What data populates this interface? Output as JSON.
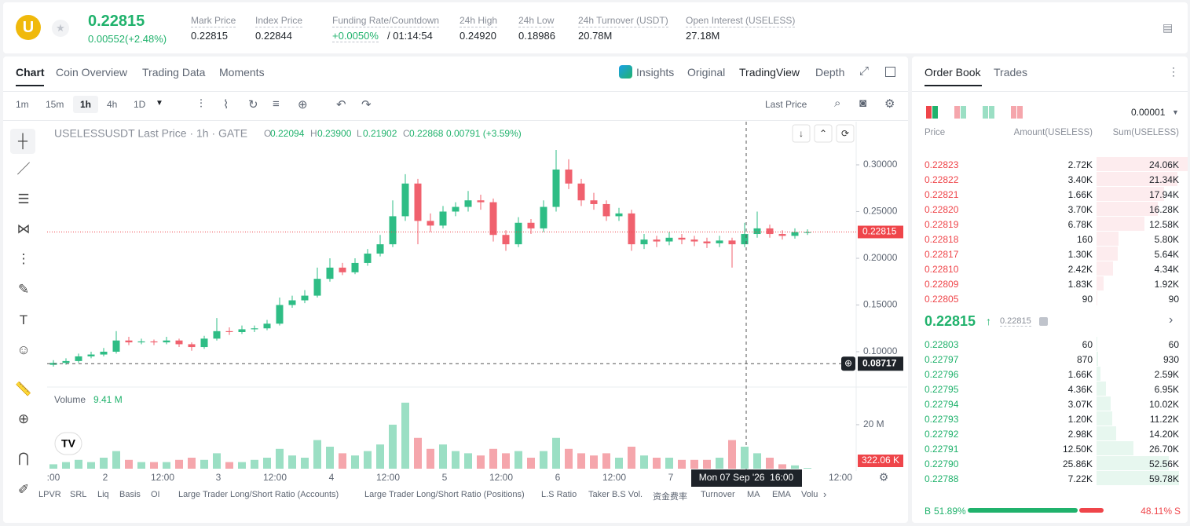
{
  "header": {
    "logo": "U",
    "price": "0.22815",
    "change": "0.00552(+2.48%)",
    "stats": [
      {
        "label": "Mark Price",
        "value": "0.22815"
      },
      {
        "label": "Index Price",
        "value": "0.22844"
      },
      {
        "label": "Funding Rate/Countdown",
        "value": "+0.0050%",
        "extra": "/ 01:14:54"
      },
      {
        "label": "24h High",
        "value": "0.24920"
      },
      {
        "label": "24h Low",
        "value": "0.18986"
      },
      {
        "label": "24h Turnover (USDT)",
        "value": "20.78M"
      },
      {
        "label": "Open Interest (USELESS)",
        "value": "27.18M"
      }
    ]
  },
  "tabs": {
    "left": [
      "Chart",
      "Coin Overview",
      "Trading Data",
      "Moments"
    ],
    "right": [
      "Insights",
      "Original",
      "TradingView",
      "Depth"
    ]
  },
  "toolbar": {
    "intervals": [
      "1m",
      "15m",
      "1h",
      "4h",
      "1D"
    ],
    "price_type": "Last Price"
  },
  "chart": {
    "legend": {
      "title": "USELESSUSDT Last Price · 1h · GATE",
      "ohlc": [
        [
          "O",
          "0.22094"
        ],
        [
          "H",
          "0.23900"
        ],
        [
          "L",
          "0.21902"
        ],
        [
          "C",
          "0.22868"
        ]
      ],
      "change": "0.00791 (+3.59%)"
    },
    "ylim": [
      0.0647,
      0.3462
    ],
    "yticks": [
      {
        "value": 0.3,
        "label": "0.30000"
      },
      {
        "value": 0.25,
        "label": "0.25000"
      },
      {
        "value": 0.2,
        "label": "0.20000"
      },
      {
        "value": 0.15,
        "label": "0.15000"
      },
      {
        "value": 0.1,
        "label": "0.10000"
      }
    ],
    "last_price": {
      "value": 0.22815,
      "label": "0.22815"
    },
    "crosshair": {
      "value": 0.08717,
      "label": "0.08717",
      "time": "Mon 07 Sep '26  16:00"
    },
    "candles": [
      [
        0.086,
        0.091,
        0.084,
        0.088
      ],
      [
        0.088,
        0.093,
        0.086,
        0.09
      ],
      [
        0.09,
        0.098,
        0.088,
        0.095
      ],
      [
        0.095,
        0.1,
        0.093,
        0.097
      ],
      [
        0.097,
        0.104,
        0.095,
        0.1
      ],
      [
        0.1,
        0.122,
        0.098,
        0.112
      ],
      [
        0.112,
        0.116,
        0.107,
        0.11
      ],
      [
        0.11,
        0.114,
        0.108,
        0.111
      ],
      [
        0.111,
        0.113,
        0.107,
        0.11
      ],
      [
        0.11,
        0.116,
        0.108,
        0.112
      ],
      [
        0.112,
        0.114,
        0.105,
        0.108
      ],
      [
        0.108,
        0.11,
        0.101,
        0.105
      ],
      [
        0.105,
        0.117,
        0.103,
        0.114
      ],
      [
        0.114,
        0.136,
        0.112,
        0.122
      ],
      [
        0.122,
        0.126,
        0.118,
        0.121
      ],
      [
        0.121,
        0.128,
        0.119,
        0.124
      ],
      [
        0.124,
        0.128,
        0.121,
        0.125
      ],
      [
        0.125,
        0.134,
        0.123,
        0.13
      ],
      [
        0.13,
        0.158,
        0.128,
        0.15
      ],
      [
        0.15,
        0.16,
        0.147,
        0.155
      ],
      [
        0.155,
        0.166,
        0.152,
        0.16
      ],
      [
        0.16,
        0.19,
        0.158,
        0.178
      ],
      [
        0.178,
        0.2,
        0.175,
        0.19
      ],
      [
        0.19,
        0.195,
        0.182,
        0.185
      ],
      [
        0.185,
        0.2,
        0.183,
        0.195
      ],
      [
        0.195,
        0.21,
        0.192,
        0.205
      ],
      [
        0.205,
        0.225,
        0.202,
        0.215
      ],
      [
        0.215,
        0.262,
        0.212,
        0.245
      ],
      [
        0.245,
        0.29,
        0.24,
        0.28
      ],
      [
        0.28,
        0.285,
        0.215,
        0.24
      ],
      [
        0.24,
        0.248,
        0.228,
        0.235
      ],
      [
        0.235,
        0.256,
        0.232,
        0.25
      ],
      [
        0.25,
        0.26,
        0.245,
        0.255
      ],
      [
        0.255,
        0.272,
        0.25,
        0.262
      ],
      [
        0.262,
        0.268,
        0.252,
        0.26
      ],
      [
        0.26,
        0.264,
        0.218,
        0.225
      ],
      [
        0.225,
        0.23,
        0.208,
        0.215
      ],
      [
        0.215,
        0.244,
        0.212,
        0.238
      ],
      [
        0.238,
        0.242,
        0.226,
        0.232
      ],
      [
        0.232,
        0.262,
        0.228,
        0.255
      ],
      [
        0.255,
        0.316,
        0.25,
        0.295
      ],
      [
        0.295,
        0.306,
        0.274,
        0.28
      ],
      [
        0.28,
        0.285,
        0.256,
        0.262
      ],
      [
        0.262,
        0.27,
        0.252,
        0.258
      ],
      [
        0.258,
        0.262,
        0.24,
        0.245
      ],
      [
        0.245,
        0.254,
        0.24,
        0.248
      ],
      [
        0.248,
        0.252,
        0.208,
        0.215
      ],
      [
        0.215,
        0.226,
        0.21,
        0.22
      ],
      [
        0.22,
        0.224,
        0.212,
        0.218
      ],
      [
        0.218,
        0.228,
        0.214,
        0.222
      ],
      [
        0.222,
        0.226,
        0.215,
        0.22
      ],
      [
        0.22,
        0.224,
        0.213,
        0.218
      ],
      [
        0.218,
        0.222,
        0.211,
        0.216
      ],
      [
        0.216,
        0.224,
        0.212,
        0.219
      ],
      [
        0.219,
        0.222,
        0.19,
        0.215
      ],
      [
        0.215,
        0.238,
        0.212,
        0.226
      ],
      [
        0.226,
        0.25,
        0.222,
        0.232
      ],
      [
        0.232,
        0.236,
        0.222,
        0.226
      ],
      [
        0.226,
        0.23,
        0.22,
        0.224
      ],
      [
        0.224,
        0.232,
        0.221,
        0.228
      ],
      [
        0.228,
        0.231,
        0.225,
        0.228
      ]
    ],
    "volume": {
      "title": "Volume",
      "value": "9.41 M",
      "ylim": [
        0,
        34.6
      ],
      "yticks": [
        {
          "value": 20,
          "label": "20 M"
        }
      ],
      "last": "322.06 K",
      "values": [
        2,
        3,
        4,
        3,
        5,
        8,
        4,
        3,
        3,
        3,
        4,
        5,
        4,
        7,
        3,
        3,
        4,
        5,
        9,
        6,
        5,
        13,
        10,
        7,
        6,
        8,
        11,
        20,
        30,
        14,
        9,
        11,
        8,
        7,
        6,
        9,
        7,
        8,
        5,
        8,
        14,
        9,
        7,
        6,
        7,
        5,
        10,
        6,
        5,
        5,
        4,
        4,
        4,
        5,
        13,
        10,
        7,
        5,
        2,
        1.5,
        0.32
      ]
    },
    "xticks": [
      ":00",
      "2",
      "12:00",
      "3",
      "12:00",
      "4",
      "12:00",
      "5",
      "12:00",
      "6",
      "12:00",
      "7",
      "12:00"
    ]
  },
  "indicators": [
    "LPVR",
    "SRL",
    "Liq",
    "Basis",
    "OI",
    "Large Trader Long/Short Ratio (Accounts)",
    "Large Trader Long/Short Ratio (Positions)",
    "L.S Ratio",
    "Taker B.S Vol.",
    "资金费率",
    "Turnover",
    "MA",
    "EMA",
    "Volu"
  ],
  "order_book": {
    "tabs": [
      "Order Book",
      "Trades"
    ],
    "precision": "0.00001",
    "headers": [
      "Price",
      "Amount(USELESS)",
      "Sum(USELESS)"
    ],
    "asks": [
      [
        "0.22823",
        "2.72K",
        "24.06K"
      ],
      [
        "0.22822",
        "3.40K",
        "21.34K"
      ],
      [
        "0.22821",
        "1.66K",
        "17.94K"
      ],
      [
        "0.22820",
        "3.70K",
        "16.28K"
      ],
      [
        "0.22819",
        "6.78K",
        "12.58K"
      ],
      [
        "0.22818",
        "160",
        "5.80K"
      ],
      [
        "0.22817",
        "1.30K",
        "5.64K"
      ],
      [
        "0.22810",
        "2.42K",
        "4.34K"
      ],
      [
        "0.22809",
        "1.83K",
        "1.92K"
      ],
      [
        "0.22805",
        "90",
        "90"
      ]
    ],
    "mid": {
      "price": "0.22815",
      "mark": "0.22815"
    },
    "bids": [
      [
        "0.22803",
        "60",
        "60"
      ],
      [
        "0.22797",
        "870",
        "930"
      ],
      [
        "0.22796",
        "1.66K",
        "2.59K"
      ],
      [
        "0.22795",
        "4.36K",
        "6.95K"
      ],
      [
        "0.22794",
        "3.07K",
        "10.02K"
      ],
      [
        "0.22793",
        "1.20K",
        "11.22K"
      ],
      [
        "0.22792",
        "2.98K",
        "14.20K"
      ],
      [
        "0.22791",
        "12.50K",
        "26.70K"
      ],
      [
        "0.22790",
        "25.86K",
        "52.56K"
      ],
      [
        "0.22788",
        "7.22K",
        "59.78K"
      ]
    ],
    "ratio": {
      "buy_label": "B",
      "buy": "51.89%",
      "sell": "48.11%",
      "sell_label": "S"
    }
  }
}
